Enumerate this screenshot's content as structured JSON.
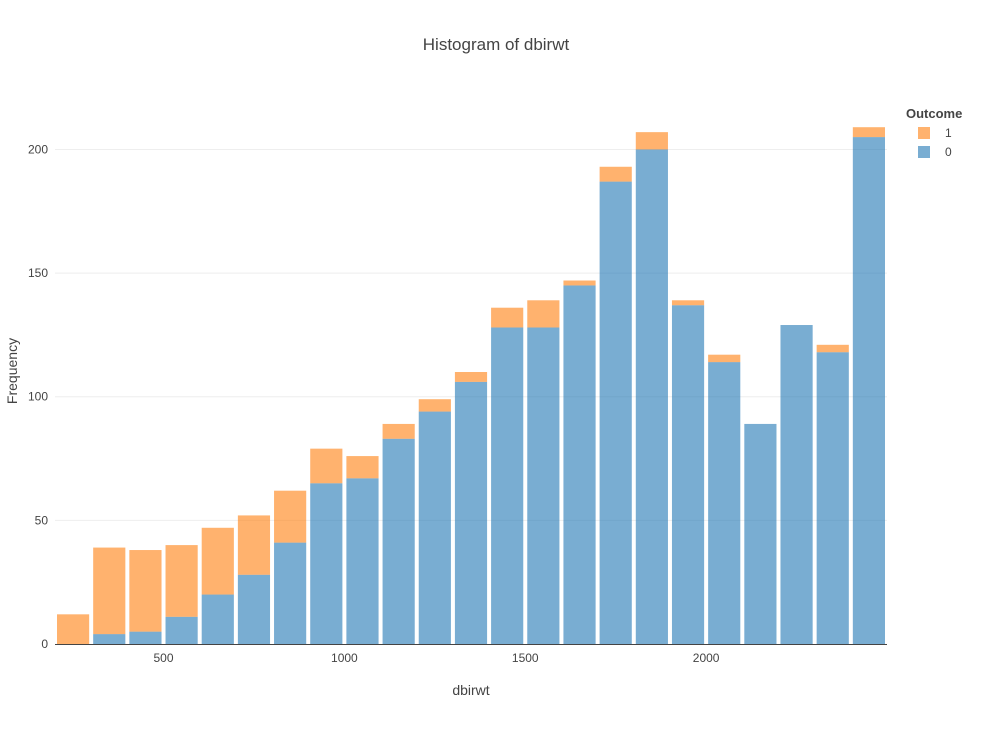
{
  "chart_data": {
    "type": "bar",
    "mode": "stacked-histogram",
    "title": "Histogram of dbirwt",
    "xlabel": "dbirwt",
    "ylabel": "Frequency",
    "xlim": [
      200,
      2500
    ],
    "ylim": [
      0,
      220
    ],
    "x_ticks": [
      500,
      1000,
      1500,
      2000
    ],
    "y_ticks": [
      0,
      50,
      100,
      150,
      200
    ],
    "bins": [
      [
        200,
        300
      ],
      [
        300,
        400
      ],
      [
        400,
        500
      ],
      [
        500,
        600
      ],
      [
        600,
        700
      ],
      [
        700,
        800
      ],
      [
        800,
        900
      ],
      [
        900,
        1000
      ],
      [
        1000,
        1100
      ],
      [
        1100,
        1200
      ],
      [
        1200,
        1300
      ],
      [
        1300,
        1400
      ],
      [
        1400,
        1500
      ],
      [
        1500,
        1600
      ],
      [
        1600,
        1700
      ],
      [
        1700,
        1800
      ],
      [
        1800,
        1900
      ],
      [
        1900,
        2000
      ],
      [
        2000,
        2100
      ],
      [
        2100,
        2200
      ],
      [
        2200,
        2300
      ],
      [
        2300,
        2400
      ],
      [
        2400,
        2500
      ]
    ],
    "series": [
      {
        "name": "0",
        "color": "#1f77b4",
        "values": [
          0,
          4,
          5,
          11,
          20,
          28,
          41,
          65,
          67,
          83,
          94,
          106,
          128,
          128,
          145,
          187,
          200,
          137,
          114,
          89,
          129,
          118,
          205
        ]
      },
      {
        "name": "1",
        "color": "#ff7f0e",
        "values": [
          12,
          35,
          33,
          29,
          27,
          24,
          21,
          14,
          9,
          6,
          5,
          4,
          8,
          11,
          2,
          6,
          7,
          2,
          3,
          0,
          0,
          3,
          4
        ]
      }
    ],
    "legend": {
      "title": "Outcome",
      "order": [
        "1",
        "0"
      ],
      "position": "top-right"
    },
    "grid": true
  }
}
